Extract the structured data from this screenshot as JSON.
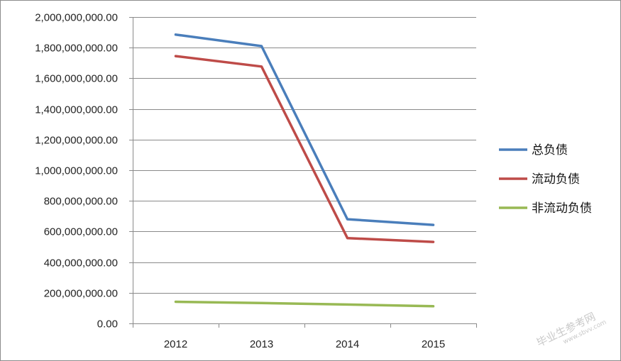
{
  "chart_data": {
    "type": "line",
    "title": "",
    "xlabel": "",
    "ylabel": "",
    "categories": [
      "2012",
      "2013",
      "2014",
      "2015"
    ],
    "ylim": [
      0,
      2000000000
    ],
    "y_ticks": [
      0,
      200000000,
      400000000,
      600000000,
      800000000,
      1000000000,
      1200000000,
      1400000000,
      1600000000,
      1800000000,
      2000000000
    ],
    "y_tick_labels": [
      "0.00",
      "200,000,000.00",
      "400,000,000.00",
      "600,000,000.00",
      "800,000,000.00",
      "1,000,000,000.00",
      "1,200,000,000.00",
      "1,400,000,000.00",
      "1,600,000,000.00",
      "1,800,000,000.00",
      "2,000,000,000.00"
    ],
    "grid": true,
    "legend_position": "right",
    "series": [
      {
        "name": "总负债",
        "color": "#4a7ebb",
        "values": [
          1885000000,
          1810000000,
          680000000,
          643000000
        ]
      },
      {
        "name": "流动负债",
        "color": "#be4b48",
        "values": [
          1745000000,
          1677000000,
          557000000,
          532000000
        ]
      },
      {
        "name": "非流动负债",
        "color": "#98b954",
        "values": [
          141000000,
          133000000,
          123000000,
          112000000
        ]
      }
    ]
  },
  "watermark": {
    "text": "毕业生参考网",
    "subtext": "www.sbvv.com"
  }
}
